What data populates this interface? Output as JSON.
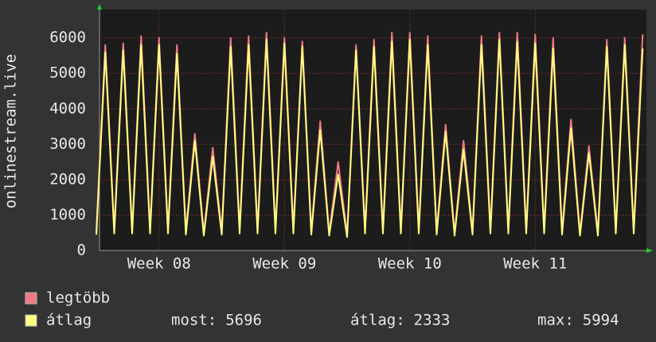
{
  "chart_data": {
    "type": "line",
    "y_label": "onlinestream.live",
    "categories": [
      null,
      null,
      null,
      null,
      null,
      null,
      null,
      "Week 08",
      null,
      null,
      null,
      null,
      null,
      null,
      null,
      null,
      null,
      null,
      null,
      null,
      null,
      "Week 09",
      null,
      null,
      null,
      null,
      null,
      null,
      null,
      null,
      null,
      null,
      null,
      null,
      null,
      "Week 10",
      null,
      null,
      null,
      null,
      null,
      null,
      null,
      null,
      null,
      null,
      null,
      null,
      null,
      "Week 11",
      null,
      null,
      null,
      null,
      null,
      null,
      null,
      null,
      null,
      null,
      null,
      null
    ],
    "series": [
      {
        "name": "legtöbb",
        "color": "#f07a82",
        "values": [
          550,
          5800,
          600,
          5850,
          600,
          6050,
          600,
          6000,
          600,
          5800,
          550,
          3300,
          500,
          2900,
          550,
          6000,
          600,
          6050,
          600,
          6150,
          600,
          6000,
          600,
          5900,
          550,
          3650,
          500,
          2500,
          450,
          5800,
          600,
          5950,
          600,
          6150,
          600,
          6150,
          600,
          6050,
          550,
          3550,
          500,
          3100,
          550,
          6050,
          600,
          6150,
          600,
          6150,
          600,
          6100,
          600,
          6000,
          550,
          3700,
          500,
          2950,
          500,
          5950,
          600,
          6000,
          600,
          6100
        ]
      },
      {
        "name": "átlag",
        "color": "#ffff80",
        "values": [
          450,
          5600,
          480,
          5650,
          480,
          5800,
          480,
          5800,
          480,
          5550,
          450,
          3100,
          420,
          2650,
          450,
          5750,
          480,
          5800,
          480,
          5950,
          480,
          5850,
          480,
          5750,
          450,
          3400,
          420,
          2150,
          380,
          5650,
          480,
          5750,
          480,
          5900,
          480,
          5950,
          480,
          5800,
          450,
          3350,
          420,
          2850,
          450,
          5800,
          480,
          5950,
          480,
          5900,
          480,
          5850,
          480,
          5700,
          450,
          3450,
          420,
          2750,
          420,
          5750,
          480,
          5800,
          480,
          5700
        ]
      }
    ],
    "ylim": [
      0,
      6800
    ],
    "yticks": [
      0,
      1000,
      2000,
      3000,
      4000,
      5000,
      6000
    ],
    "grid": true,
    "stats": [
      {
        "label": "most:",
        "value": 5696
      },
      {
        "label": "átlag:",
        "value": 2333
      },
      {
        "label": "max:",
        "value": 5994
      }
    ]
  }
}
